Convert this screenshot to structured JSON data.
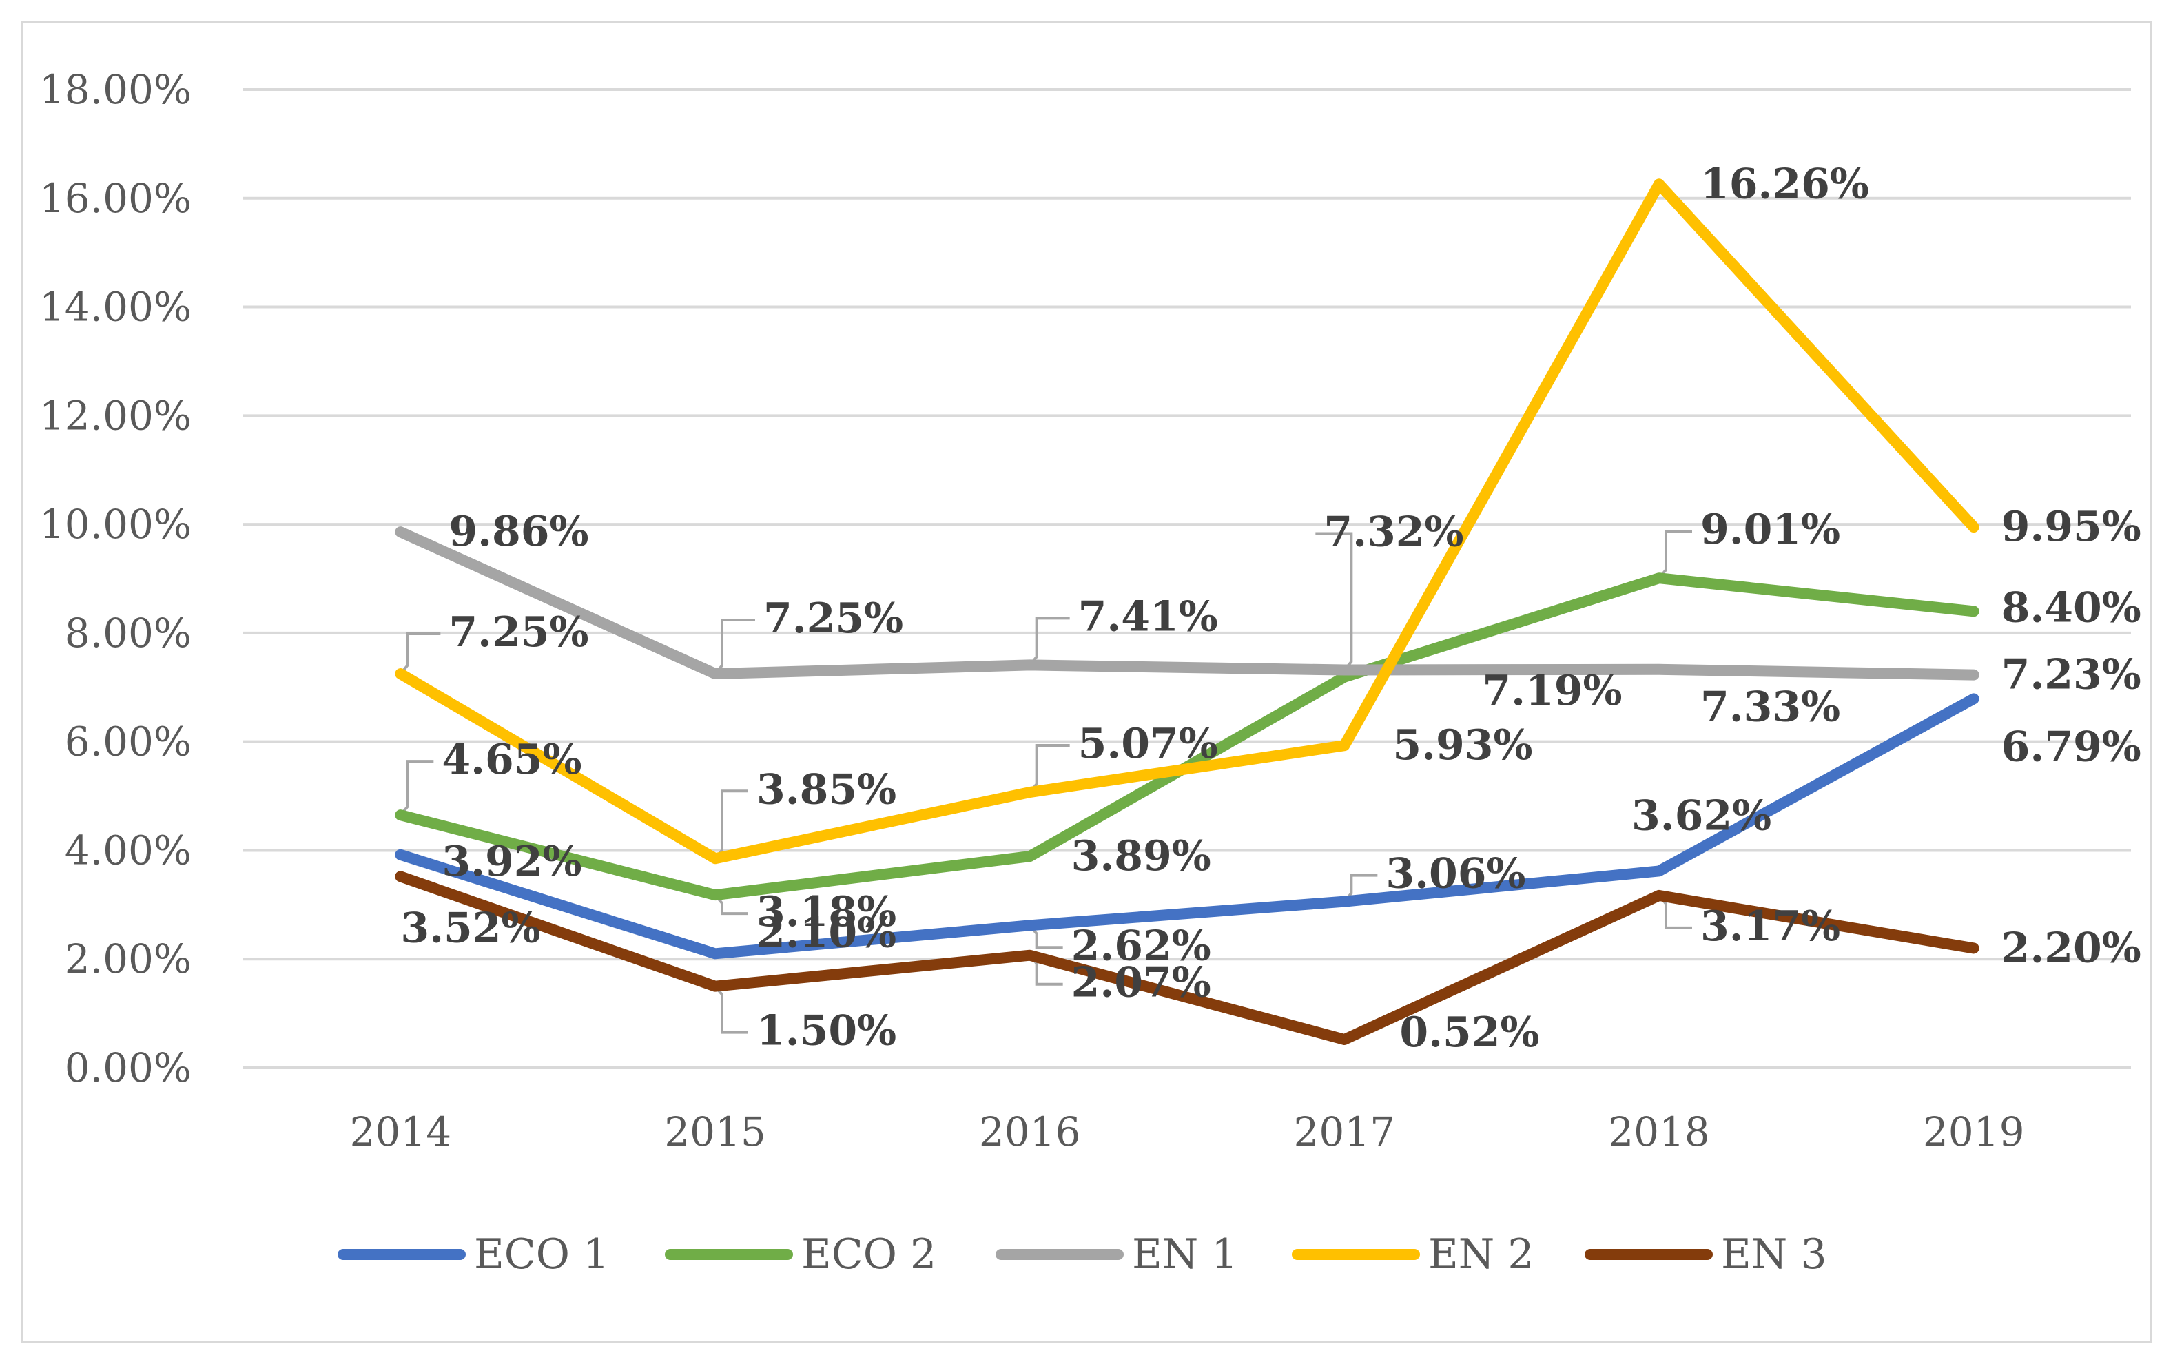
{
  "chart_data": {
    "type": "line",
    "title": "",
    "xlabel": "",
    "ylabel": "",
    "categories": [
      "2014",
      "2015",
      "2016",
      "2017",
      "2018",
      "2019"
    ],
    "ylim": [
      0,
      18
    ],
    "yticks": [
      "0.00%",
      "2.00%",
      "4.00%",
      "6.00%",
      "8.00%",
      "10.00%",
      "12.00%",
      "14.00%",
      "16.00%",
      "18.00%"
    ],
    "grid": true,
    "legend_position": "bottom",
    "series": [
      {
        "name": "ECO 1",
        "color": "#4472c4",
        "values": [
          3.92,
          2.1,
          2.62,
          3.06,
          3.62,
          6.79
        ],
        "labels": [
          "3.92%",
          "2.10%",
          "2.62%",
          "3.06%",
          "3.62%",
          "6.79%"
        ]
      },
      {
        "name": "ECO 2",
        "color": "#70ad47",
        "values": [
          4.65,
          3.18,
          3.89,
          7.19,
          9.01,
          8.4
        ],
        "labels": [
          "4.65%",
          "3.18%",
          "3.89%",
          "7.19%",
          "9.01%",
          "8.40%"
        ]
      },
      {
        "name": "EN 1",
        "color": "#a5a5a5",
        "values": [
          9.86,
          7.25,
          7.41,
          7.32,
          7.33,
          7.23
        ],
        "labels": [
          "9.86%",
          "7.25%",
          "7.41%",
          "7.32%",
          "7.33%",
          "7.23%"
        ]
      },
      {
        "name": "EN 2",
        "color": "#ffc000",
        "values": [
          7.25,
          3.85,
          5.07,
          5.93,
          16.26,
          9.95
        ],
        "labels": [
          "7.25%",
          "3.85%",
          "5.07%",
          "5.93%",
          "16.26%",
          "9.95%"
        ]
      },
      {
        "name": "EN 3",
        "color": "#843c0c",
        "values": [
          3.52,
          1.5,
          2.07,
          0.52,
          3.17,
          2.2
        ],
        "labels": [
          "3.52%",
          "1.50%",
          "2.07%",
          "0.52%",
          "3.17%",
          "2.20%"
        ]
      }
    ]
  }
}
